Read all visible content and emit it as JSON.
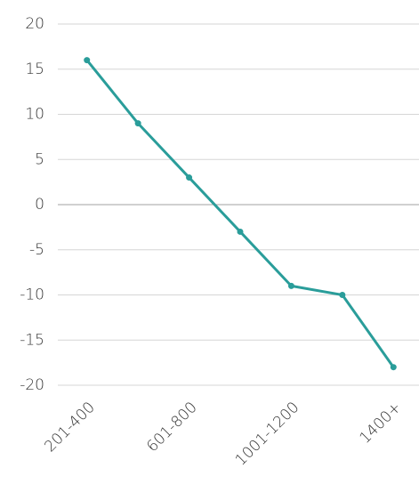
{
  "chart_data": {
    "type": "line",
    "categories": [
      "201-400",
      null,
      "601-800",
      null,
      "1001-1200",
      null,
      "1400+"
    ],
    "series": [
      {
        "color": "#2a9d9a",
        "values": [
          16,
          9,
          3,
          -3,
          -9,
          -10,
          -18
        ]
      }
    ],
    "ylim": [
      -20,
      20
    ],
    "yticks": [
      -20,
      -15,
      -10,
      -5,
      0,
      5,
      10,
      15,
      20
    ],
    "grid": true
  }
}
